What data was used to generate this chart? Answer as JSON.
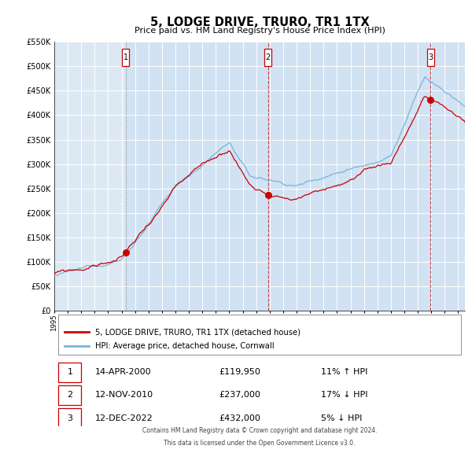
{
  "title": "5, LODGE DRIVE, TRURO, TR1 1TX",
  "subtitle": "Price paid vs. HM Land Registry's House Price Index (HPI)",
  "sale1_date": "14-APR-2000",
  "sale1_price": 119950,
  "sale1_hpi": "11% ↑ HPI",
  "sale2_date": "12-NOV-2010",
  "sale2_price": 237000,
  "sale2_hpi": "17% ↓ HPI",
  "sale3_date": "12-DEC-2022",
  "sale3_price": 432000,
  "sale3_hpi": "5% ↓ HPI",
  "legend_red": "5, LODGE DRIVE, TRURO, TR1 1TX (detached house)",
  "legend_blue": "HPI: Average price, detached house, Cornwall",
  "footer1": "Contains HM Land Registry data © Crown copyright and database right 2024.",
  "footer2": "This data is licensed under the Open Government Licence v3.0.",
  "hpi_color": "#7ab4d8",
  "red_color": "#cc0000",
  "bg_color": "#dce9f5",
  "grid_color": "#c8d8e8",
  "ylim": [
    0,
    550000
  ],
  "start_year": 1995.0,
  "end_year": 2025.5,
  "sale1_year": 2000.29,
  "sale2_year": 2010.87,
  "sale3_year": 2022.95
}
